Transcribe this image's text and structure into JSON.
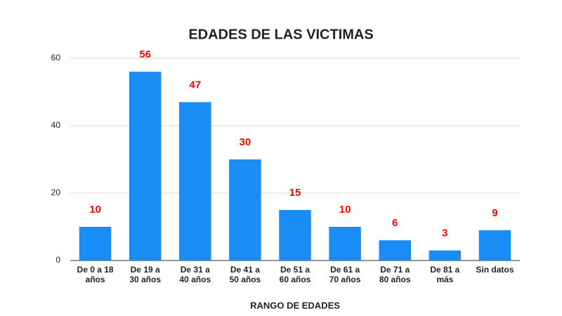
{
  "chart_data": {
    "type": "bar",
    "title": "EDADES DE LAS VICTIMAS",
    "x_label": "RANGO DE EDADES",
    "categories": [
      "De 0 a 18 años",
      "De 19 a 30 años",
      "De 31 a 40 años",
      "De 41 a 50 años",
      "De 51 a 60 años",
      "De 61 a 70 años",
      "De 71 a 80 años",
      "De 81 a más",
      "Sin datos"
    ],
    "values": [
      10,
      56,
      47,
      30,
      15,
      10,
      6,
      3,
      9
    ],
    "color": "#1a8cf5",
    "value_label_color": "#ff0000",
    "ylim": [
      0,
      60
    ],
    "yticks": [
      0,
      20,
      40,
      60
    ],
    "grid": true
  }
}
